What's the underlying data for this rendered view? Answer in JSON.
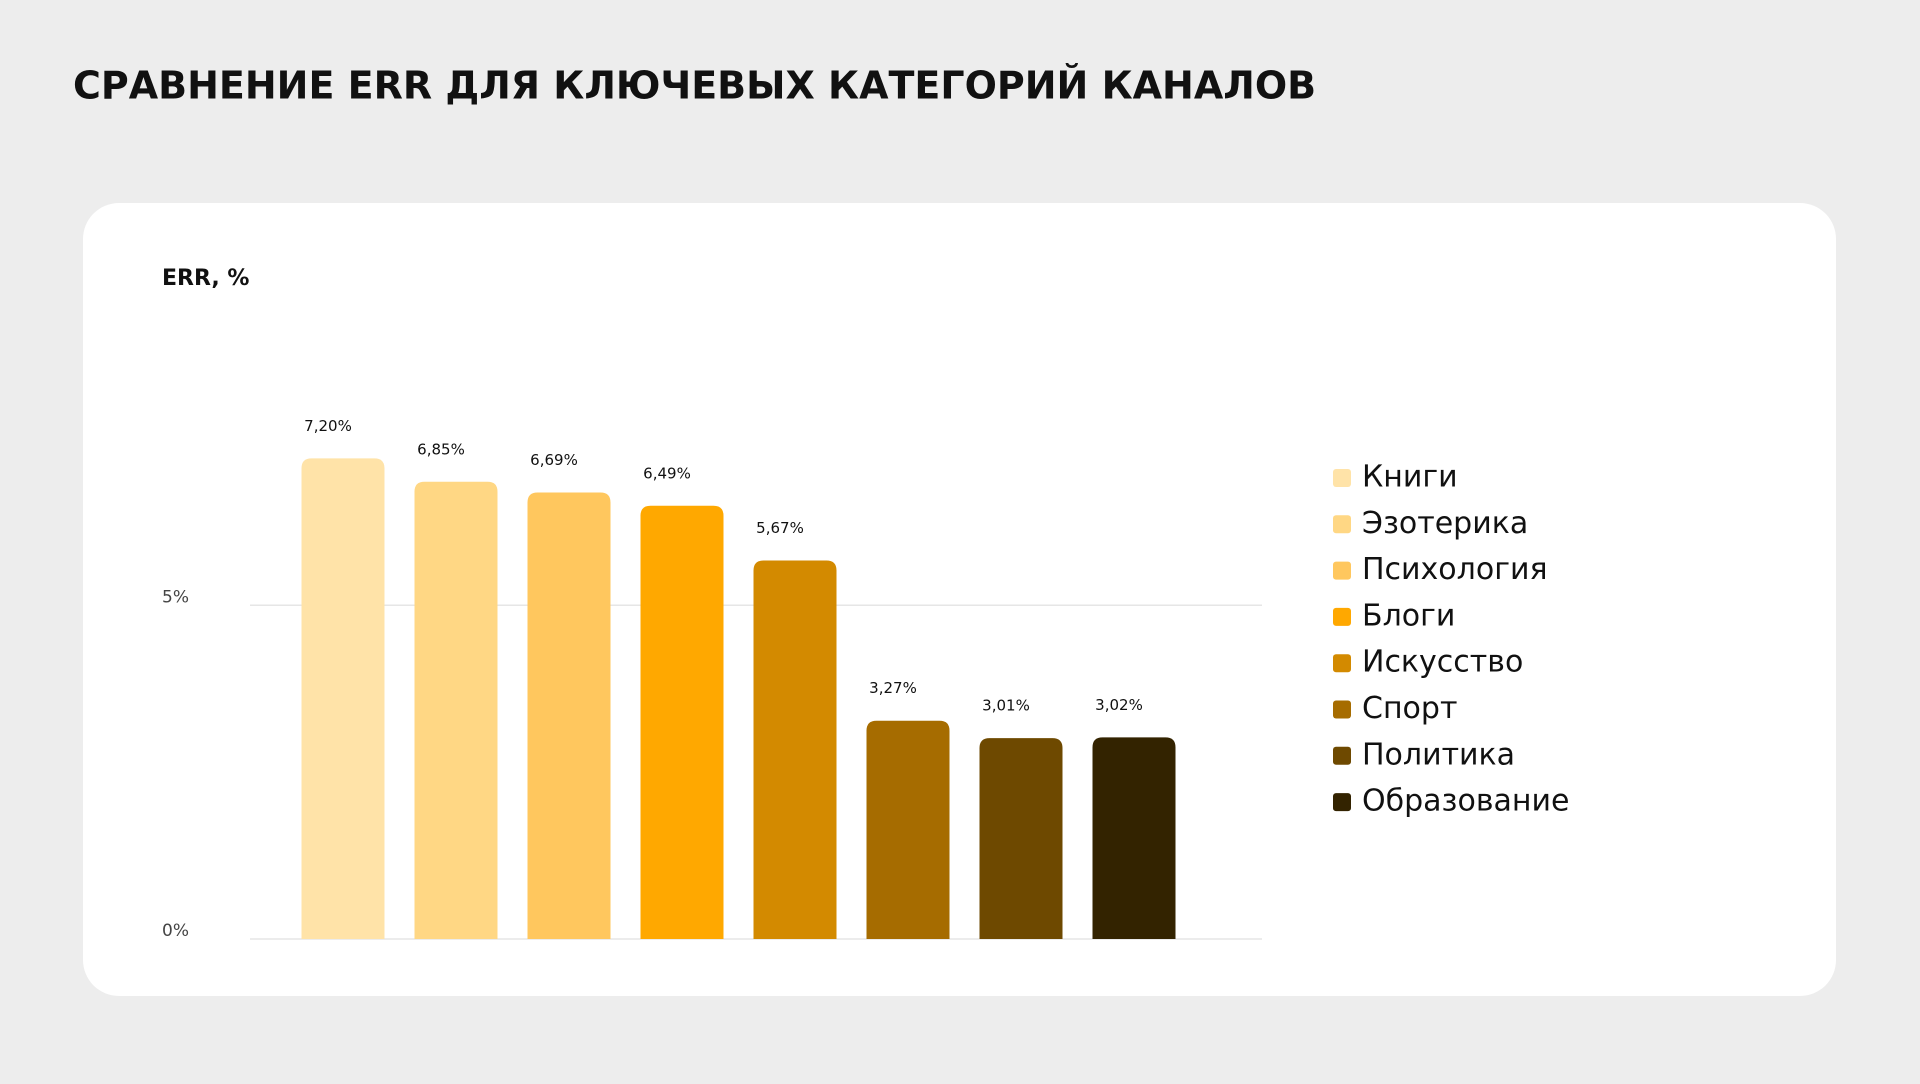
{
  "chart_data": {
    "type": "bar",
    "title": "СРАВНЕНИЕ ERR ДЛЯ КЛЮЧЕВЫХ КАТЕГОРИЙ КАНАЛОВ",
    "y_label": "ERR, %",
    "categories": [
      "Книги",
      "Эзотерика",
      "Психология",
      "Блоги",
      "Искусство",
      "Спорт",
      "Политика",
      "Образование"
    ],
    "values": [
      7.2,
      6.85,
      6.69,
      6.49,
      5.67,
      3.27,
      3.01,
      3.02
    ],
    "value_labels": [
      "7,20%",
      "6,85%",
      "6,69%",
      "6,49%",
      "5,67%",
      "3,27%",
      "3,01%",
      "3,02%"
    ],
    "colors": [
      "#FFE3A8",
      "#FFD784",
      "#FFC75E",
      "#FFA800",
      "#D38A00",
      "#A66C00",
      "#6E4900",
      "#332300"
    ],
    "ylim": [
      0,
      8
    ],
    "yticks": [
      {
        "value": 0,
        "label": "0%"
      },
      {
        "value": 5,
        "label": "5%"
      }
    ],
    "grid": true,
    "legend": "right"
  }
}
